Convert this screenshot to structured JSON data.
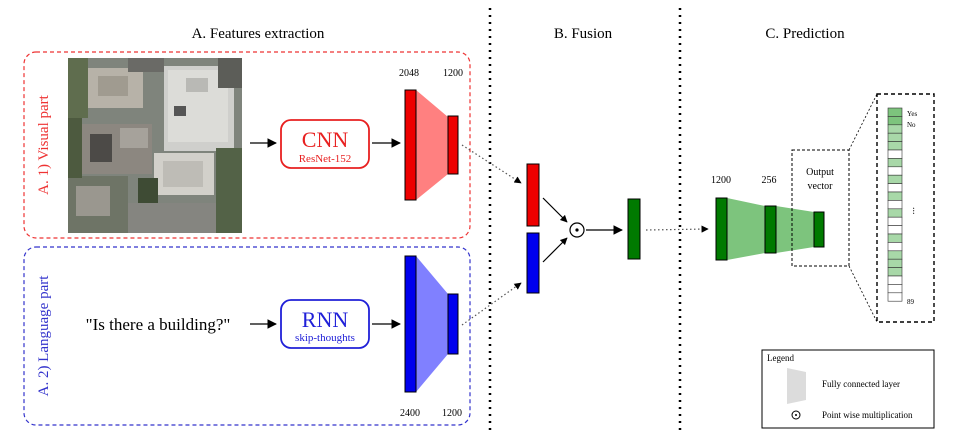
{
  "sections": {
    "features": "A. Features extraction",
    "fusion": "B. Fusion",
    "prediction": "C. Prediction"
  },
  "visual_part": {
    "label": "A. 1) Visual part",
    "color": "#ee3333"
  },
  "language_part": {
    "label": "A. 2) Language part",
    "color": "#3333cc"
  },
  "cnn": {
    "title": "CNN",
    "subtitle": "ResNet-152",
    "color": "#e82020"
  },
  "rnn": {
    "title": "RNN",
    "subtitle": "skip-thoughts",
    "color": "#2020d8"
  },
  "question": "\"Is there a building?\"",
  "visual_dims": {
    "in": "2048",
    "out": "1200"
  },
  "language_dims": {
    "in": "2400",
    "out": "1200"
  },
  "prediction_dims": {
    "in": "1200",
    "mid": "256"
  },
  "output_vector": {
    "line1": "Output",
    "line2": "vector"
  },
  "output_labels": {
    "yes": "Yes",
    "no": "No",
    "ellipsis": "...",
    "last": "89"
  },
  "pointwise_symbol": "⊙",
  "legend": {
    "title": "Legend",
    "fc_layer": "Fully connected layer",
    "pointwise": "Point wise multiplication"
  },
  "colors": {
    "red_block": "#ee0000",
    "red_fc": "#ff8080",
    "blue_block": "#0000ee",
    "blue_fc": "#8080ff",
    "green_block": "#007a00",
    "green_fc": "#7dc47d",
    "green_cell": "#a8d8a8"
  },
  "image": {
    "description_icon": "aerial-image"
  }
}
